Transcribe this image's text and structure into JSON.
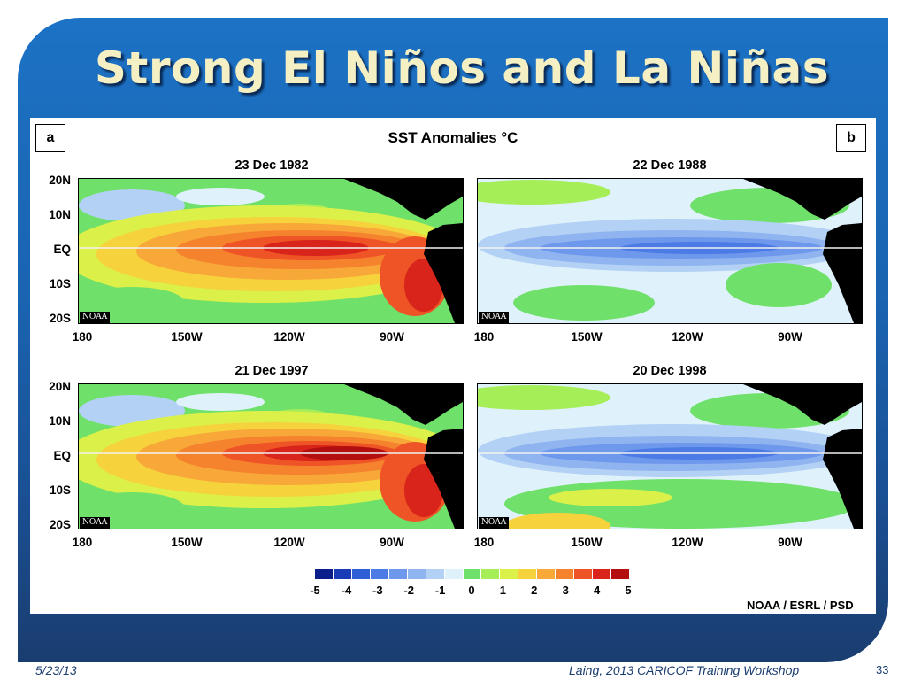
{
  "slide": {
    "title": "Strong El Niños and La Niñas",
    "footer_date": "5/23/13",
    "footer_credit": "Laing, 2013 CARICOF Training Workshop",
    "page_number": "33"
  },
  "figure": {
    "main_title": "SST Anomalies °C",
    "panel_label_a": "a",
    "panel_label_b": "b",
    "source": "NOAA / ESRL / PSD",
    "watermark": "NOAA",
    "lat_labels": [
      "20N",
      "10N",
      "EQ",
      "10S",
      "20S"
    ],
    "lon_labels": [
      "180",
      "150W",
      "120W",
      "90W"
    ],
    "maps": [
      {
        "date": "23 Dec 1982",
        "phase": "el-nino-1982"
      },
      {
        "date": "22 Dec 1988",
        "phase": "la-nina-1988"
      },
      {
        "date": "21 Dec 1997",
        "phase": "el-nino-1997"
      },
      {
        "date": "20 Dec 1998",
        "phase": "la-nina-1998"
      }
    ],
    "colorbar": {
      "tick_labels": [
        "-5",
        "-4",
        "-3",
        "-2",
        "-1",
        "0",
        "1",
        "2",
        "3",
        "4",
        "5"
      ],
      "colors": [
        "#0a1f8c",
        "#1a3bb8",
        "#2f5ed6",
        "#4d7be6",
        "#6e98ec",
        "#8fb4f0",
        "#b3d1f5",
        "#dff2fb",
        "#6fe06a",
        "#a6ee58",
        "#dcf04a",
        "#f6d23c",
        "#f8a838",
        "#f5832e",
        "#ee5426",
        "#d8241a",
        "#b30f0f"
      ]
    }
  }
}
